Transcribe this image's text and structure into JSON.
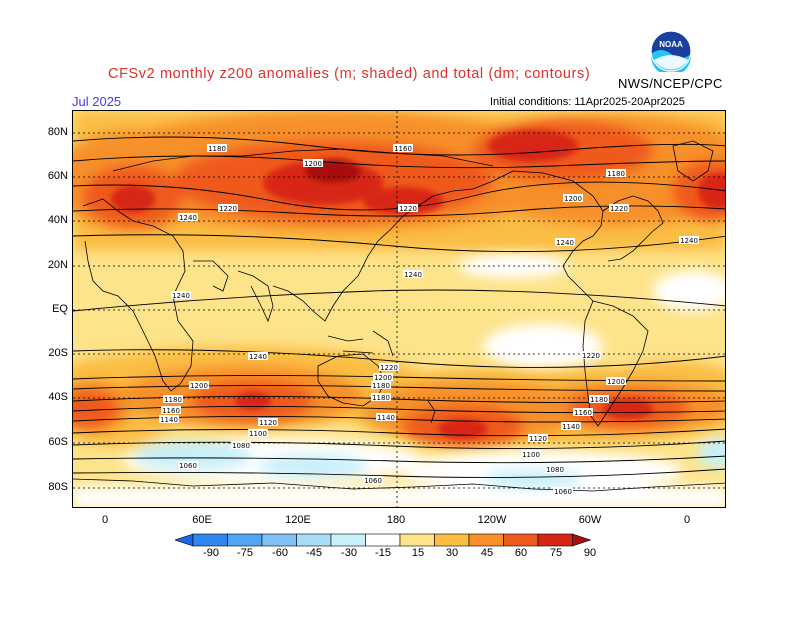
{
  "header": {
    "title": "CFSv2 monthly z200 anomalies (m; shaded) and total (dm; contours)",
    "month": "Jul 2025",
    "organization": "NWS/NCEP/CPC",
    "initial_conditions": "Initial conditions: 11Apr2025-20Apr2025",
    "logo_text": "NOAA"
  },
  "axes": {
    "y_labels": [
      "80N",
      "60N",
      "40N",
      "20N",
      "EQ",
      "20S",
      "40S",
      "60S",
      "80S"
    ],
    "x_labels": [
      "0",
      "60E",
      "120E",
      "180",
      "120W",
      "60W",
      "0"
    ]
  },
  "colorbar": {
    "labels": [
      "-90",
      "-75",
      "-60",
      "-45",
      "-30",
      "-15",
      "15",
      "30",
      "45",
      "60",
      "75",
      "90"
    ],
    "colors": [
      "#1a66e0",
      "#2f86ee",
      "#52a4f4",
      "#7ec0f7",
      "#a8dcf7",
      "#c8f0fa",
      "#ffffff",
      "#fde38a",
      "#fbbd44",
      "#f7902a",
      "#ef5a1e",
      "#d82614",
      "#a8100c"
    ]
  },
  "contour_labels": {
    "c1180a": "1180",
    "c1200a": "1200",
    "c1160a": "1160",
    "c1200b": "1200",
    "c1180b": "1180",
    "c1240a": "1240",
    "c1220a": "1220",
    "c1220b": "1220",
    "c1240b": "1240",
    "c1240c": "1240",
    "c1240d": "1240",
    "c1220c": "1220",
    "c1240e": "1240",
    "c1220d": "1220",
    "c1240f": "1240",
    "c1200c": "1200",
    "c1180c": "1180",
    "c1160b": "1160",
    "c1140a": "1140",
    "c1120a": "1120",
    "c1100a": "1100",
    "c1080a": "1080",
    "c1060a": "1060",
    "c1220e": "1220",
    "c1200d": "1200",
    "c1180d": "1180",
    "c1180e": "1180",
    "c1160c": "1160",
    "c1140b": "1140",
    "c1120b": "1120",
    "c1100b": "1100",
    "c1080b": "1080",
    "c1060b": "1060",
    "c1200e": "1200",
    "c1180f": "1180",
    "c1140c": "1140",
    "c1060c": "1060"
  }
}
